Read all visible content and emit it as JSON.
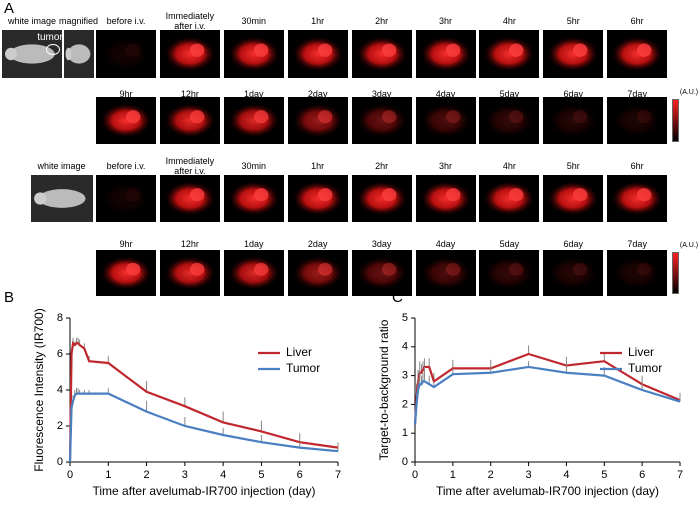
{
  "panel_a": {
    "label": "A",
    "tumor_label": "tumor",
    "colorbar_label": "(A.U.)",
    "rows": [
      {
        "labels": [
          "white image",
          "magnified",
          "before i.v.",
          "Immediately after i.v.",
          "30min",
          "1hr",
          "2hr",
          "3hr",
          "4hr",
          "5hr",
          "6hr"
        ]
      },
      {
        "labels": [
          "9hr",
          "12hr",
          "1day",
          "2day",
          "3day",
          "4day",
          "5day",
          "6day",
          "7day"
        ]
      },
      {
        "labels": [
          "white image",
          "before i.v.",
          "Immediately after i.v.",
          "30min",
          "1hr",
          "2hr",
          "3hr",
          "4hr",
          "5hr",
          "6hr"
        ]
      },
      {
        "labels": [
          "9hr",
          "12hr",
          "1day",
          "2day",
          "3day",
          "4day",
          "5day",
          "6day",
          "7day"
        ]
      }
    ]
  },
  "chart_data": [
    {
      "type": "line",
      "panel_label": "B",
      "ylabel": "Fluorescence Intensity (IR700)",
      "xlabel": "Time after avelumab-IR700 injection (day)",
      "x": [
        0,
        0.04,
        0.08,
        0.125,
        0.17,
        0.21,
        0.25,
        0.375,
        0.5,
        1,
        2,
        3,
        4,
        5,
        6,
        7
      ],
      "xlim": [
        0,
        7
      ],
      "ylim": [
        0,
        8
      ],
      "xticks": [
        0,
        1,
        2,
        3,
        4,
        5,
        6,
        7
      ],
      "yticks": [
        0,
        2,
        4,
        6,
        8
      ],
      "legend": "upper right",
      "series": [
        {
          "name": "Liver",
          "color": "#c0282e",
          "values": [
            0,
            6.0,
            6.6,
            6.5,
            6.6,
            6.6,
            6.5,
            6.3,
            5.6,
            5.5,
            3.9,
            3.1,
            2.2,
            1.7,
            1.1,
            0.8
          ],
          "errors": [
            0,
            0.3,
            0.3,
            0.2,
            0.3,
            0.3,
            0.3,
            0.3,
            0.3,
            0.4,
            0.6,
            0.5,
            0.6,
            0.6,
            0.5,
            0.3
          ]
        },
        {
          "name": "Tumor",
          "color": "#4a7fc1",
          "values": [
            0,
            3.0,
            3.4,
            3.7,
            3.8,
            3.8,
            3.8,
            3.8,
            3.8,
            3.8,
            2.8,
            2.0,
            1.5,
            1.1,
            0.8,
            0.6
          ],
          "errors": [
            0,
            0.3,
            0.3,
            0.3,
            0.3,
            0.3,
            0.2,
            0.2,
            0.2,
            0.3,
            0.6,
            0.5,
            0.4,
            0.4,
            0.3,
            0.2
          ]
        }
      ]
    },
    {
      "type": "line",
      "panel_label": "C",
      "ylabel": "Target-to-background ratio",
      "xlabel": "Time after avelumab-IR700 injection (day)",
      "x": [
        0,
        0.04,
        0.08,
        0.125,
        0.17,
        0.21,
        0.25,
        0.375,
        0.5,
        1,
        2,
        3,
        4,
        5,
        6,
        7
      ],
      "xlim": [
        0,
        7
      ],
      "ylim": [
        0,
        5
      ],
      "xticks": [
        0,
        1,
        2,
        3,
        4,
        5,
        6,
        7
      ],
      "yticks": [
        0,
        1,
        2,
        3,
        4,
        5
      ],
      "legend": "upper right",
      "series": [
        {
          "name": "Liver",
          "color": "#c0282e",
          "values": [
            1.3,
            2.2,
            2.8,
            3.1,
            3.1,
            3.2,
            3.3,
            3.3,
            2.8,
            3.25,
            3.25,
            3.75,
            3.35,
            3.5,
            2.7,
            2.15
          ],
          "errors": [
            0,
            0.5,
            0.4,
            0.4,
            0.3,
            0.3,
            0.3,
            0.3,
            0.3,
            0.3,
            0.3,
            0.3,
            0.3,
            0.3,
            0.3,
            0.25
          ]
        },
        {
          "name": "Tumor",
          "color": "#4a7fc1",
          "values": [
            1.3,
            2.0,
            2.5,
            2.7,
            2.7,
            2.8,
            2.8,
            2.7,
            2.6,
            3.05,
            3.1,
            3.3,
            3.1,
            3.0,
            2.5,
            2.1
          ],
          "errors": [
            0,
            0.4,
            0.4,
            0.5,
            0.3,
            0.3,
            0.5,
            0.3,
            0.2,
            0.2,
            0.2,
            0.2,
            0.3,
            0.3,
            0.25,
            0.2
          ]
        }
      ]
    }
  ]
}
